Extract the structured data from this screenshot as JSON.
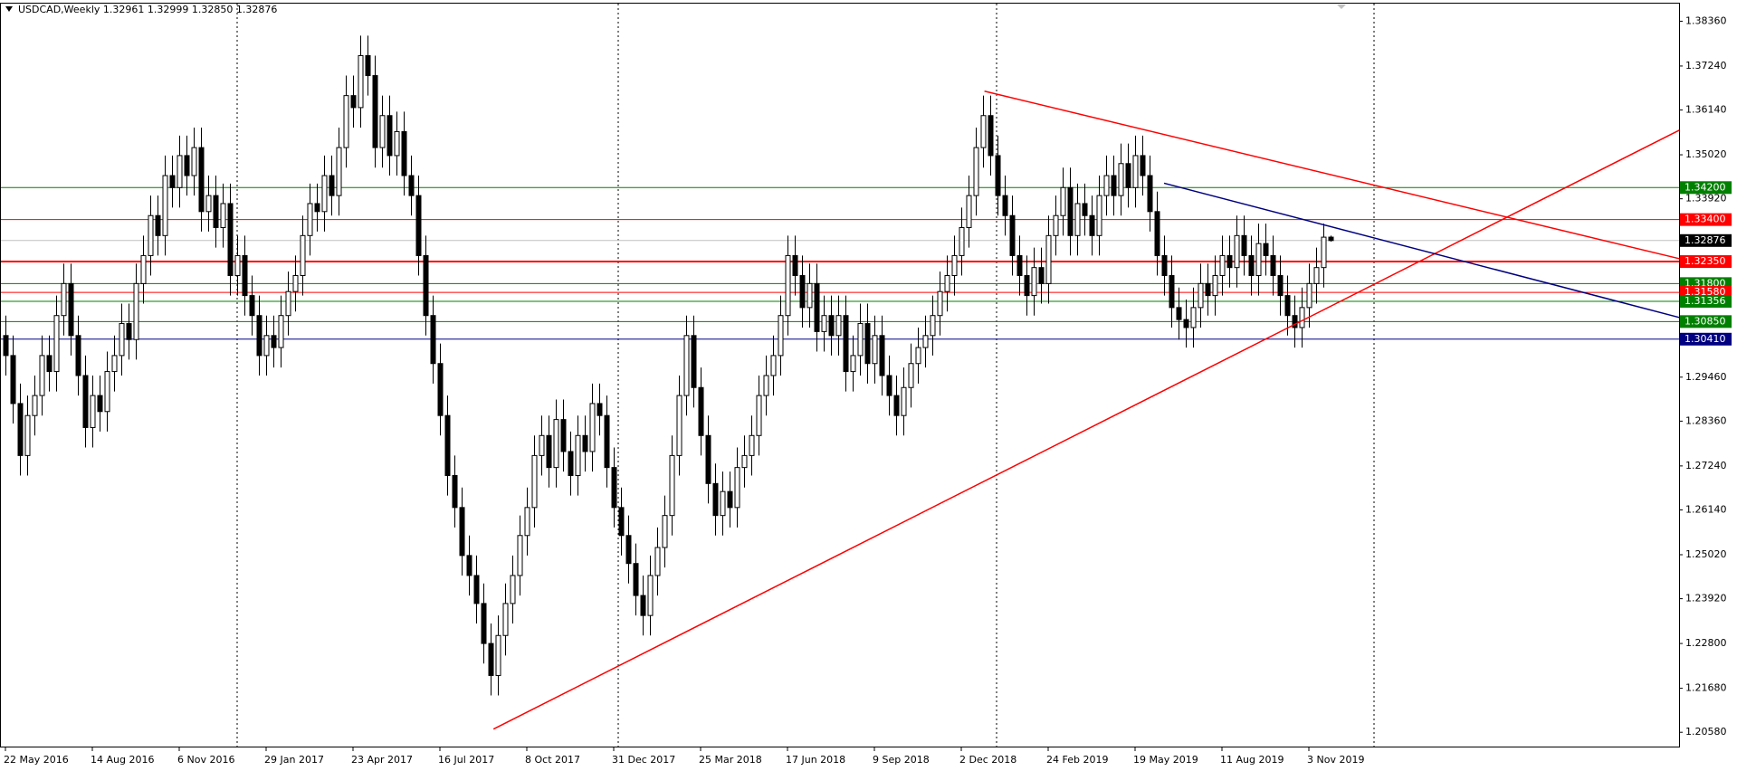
{
  "chart_data": {
    "type": "candlestick",
    "title": "USDCAD,Weekly  1.32961 1.32999 1.32850 1.32876",
    "ylim": [
      1.202,
      1.388
    ],
    "yticks": [
      {
        "value": 1.3836,
        "label": "1.38360"
      },
      {
        "value": 1.3724,
        "label": "1.37240"
      },
      {
        "value": 1.3614,
        "label": "1.36140"
      },
      {
        "value": 1.3502,
        "label": "1.35020"
      },
      {
        "value": 1.3392,
        "label": "1.33920"
      },
      {
        "value": 1.2946,
        "label": "1.29460"
      },
      {
        "value": 1.2836,
        "label": "1.28360"
      },
      {
        "value": 1.2724,
        "label": "1.27240"
      },
      {
        "value": 1.2614,
        "label": "1.26140"
      },
      {
        "value": 1.2502,
        "label": "1.25020"
      },
      {
        "value": 1.2392,
        "label": "1.23920"
      },
      {
        "value": 1.228,
        "label": "1.22800"
      },
      {
        "value": 1.2168,
        "label": "1.21680"
      },
      {
        "value": 1.2058,
        "label": "1.20580"
      }
    ],
    "x_labels": [
      "22 May 2016",
      "14 Aug 2016",
      "6 Nov 2016",
      "29 Jan 2017",
      "23 Apr 2017",
      "16 Jul 2017",
      "8 Oct 2017",
      "31 Dec 2017",
      "25 Mar 2018",
      "17 Jun 2018",
      "9 Sep 2018",
      "2 Dec 2018",
      "24 Feb 2019",
      "19 May 2019",
      "11 Aug 2019",
      "3 Nov 2019"
    ],
    "levels": [
      {
        "value": 1.342,
        "label": "1.34200",
        "color": "#008000"
      },
      {
        "value": 1.334,
        "label": "1.33400",
        "color": "#ff0000"
      },
      {
        "value": 1.32876,
        "label": "1.32876",
        "color": "#000000",
        "line_color": "#c0c0c0"
      },
      {
        "value": 1.3235,
        "label": "1.32350",
        "color": "#ff0000"
      },
      {
        "value": 1.318,
        "label": "1.31800",
        "color": "#008000"
      },
      {
        "value": 1.3158,
        "label": "1.31580",
        "color": "#ff0000"
      },
      {
        "value": 1.31356,
        "label": "1.31356",
        "color": "#008000"
      },
      {
        "value": 1.3085,
        "label": "1.30850",
        "color": "#008000"
      },
      {
        "value": 1.3041,
        "label": "1.30410",
        "color": "#000080"
      }
    ],
    "trendlines": [
      {
        "color": "#ff0000",
        "x": [
          67.4,
          231.2
        ],
        "y": [
          1.2066,
          1.3564
        ]
      },
      {
        "color": "#ff0000",
        "x": [
          135.2,
          231.2
        ],
        "y": [
          1.3661,
          1.3242
        ]
      },
      {
        "color": "#000080",
        "x": [
          160,
          231.2
        ],
        "y": [
          1.3431,
          1.3095
        ]
      }
    ],
    "candles": [
      [
        1.305,
        1.31,
        1.295,
        1.3
      ],
      [
        1.3,
        1.305,
        1.283,
        1.288
      ],
      [
        1.288,
        1.293,
        1.27,
        1.275
      ],
      [
        1.275,
        1.29,
        1.27,
        1.285
      ],
      [
        1.285,
        1.295,
        1.28,
        1.29
      ],
      [
        1.29,
        1.305,
        1.285,
        1.3
      ],
      [
        1.3,
        1.305,
        1.291,
        1.296
      ],
      [
        1.296,
        1.315,
        1.291,
        1.31
      ],
      [
        1.31,
        1.323,
        1.305,
        1.318
      ],
      [
        1.318,
        1.323,
        1.3,
        1.305
      ],
      [
        1.305,
        1.31,
        1.29,
        1.295
      ],
      [
        1.295,
        1.3,
        1.277,
        1.282
      ],
      [
        1.282,
        1.295,
        1.277,
        1.29
      ],
      [
        1.29,
        1.295,
        1.281,
        1.286
      ],
      [
        1.286,
        1.301,
        1.281,
        1.296
      ],
      [
        1.296,
        1.305,
        1.291,
        1.3
      ],
      [
        1.3,
        1.313,
        1.295,
        1.308
      ],
      [
        1.308,
        1.313,
        1.299,
        1.304
      ],
      [
        1.304,
        1.323,
        1.299,
        1.318
      ],
      [
        1.318,
        1.33,
        1.313,
        1.325
      ],
      [
        1.325,
        1.34,
        1.32,
        1.335
      ],
      [
        1.335,
        1.34,
        1.325,
        1.33
      ],
      [
        1.33,
        1.35,
        1.325,
        1.345
      ],
      [
        1.345,
        1.35,
        1.337,
        1.342
      ],
      [
        1.342,
        1.355,
        1.337,
        1.35
      ],
      [
        1.35,
        1.355,
        1.34,
        1.345
      ],
      [
        1.345,
        1.357,
        1.34,
        1.352
      ],
      [
        1.352,
        1.357,
        1.331,
        1.336
      ],
      [
        1.336,
        1.345,
        1.331,
        1.34
      ],
      [
        1.34,
        1.345,
        1.327,
        1.332
      ],
      [
        1.332,
        1.343,
        1.327,
        1.338
      ],
      [
        1.338,
        1.343,
        1.315,
        1.32
      ],
      [
        1.32,
        1.33,
        1.315,
        1.325
      ],
      [
        1.325,
        1.33,
        1.31,
        1.315
      ],
      [
        1.315,
        1.32,
        1.305,
        1.31
      ],
      [
        1.31,
        1.315,
        1.295,
        1.3
      ],
      [
        1.3,
        1.31,
        1.295,
        1.305
      ],
      [
        1.305,
        1.31,
        1.297,
        1.302
      ],
      [
        1.302,
        1.315,
        1.297,
        1.31
      ],
      [
        1.31,
        1.321,
        1.305,
        1.316
      ],
      [
        1.316,
        1.325,
        1.311,
        1.32
      ],
      [
        1.32,
        1.335,
        1.315,
        1.33
      ],
      [
        1.33,
        1.343,
        1.325,
        1.338
      ],
      [
        1.338,
        1.343,
        1.331,
        1.336
      ],
      [
        1.336,
        1.35,
        1.331,
        1.345
      ],
      [
        1.345,
        1.35,
        1.335,
        1.34
      ],
      [
        1.34,
        1.357,
        1.335,
        1.352
      ],
      [
        1.352,
        1.37,
        1.347,
        1.365
      ],
      [
        1.365,
        1.37,
        1.357,
        1.362
      ],
      [
        1.362,
        1.38,
        1.357,
        1.375
      ],
      [
        1.375,
        1.38,
        1.365,
        1.37
      ],
      [
        1.37,
        1.375,
        1.347,
        1.352
      ],
      [
        1.352,
        1.365,
        1.347,
        1.36
      ],
      [
        1.36,
        1.365,
        1.345,
        1.35
      ],
      [
        1.35,
        1.361,
        1.345,
        1.356
      ],
      [
        1.356,
        1.361,
        1.34,
        1.345
      ],
      [
        1.345,
        1.35,
        1.335,
        1.34
      ],
      [
        1.34,
        1.345,
        1.32,
        1.325
      ],
      [
        1.325,
        1.33,
        1.305,
        1.31
      ],
      [
        1.31,
        1.315,
        1.293,
        1.298
      ],
      [
        1.298,
        1.303,
        1.28,
        1.285
      ],
      [
        1.285,
        1.29,
        1.265,
        1.27
      ],
      [
        1.27,
        1.275,
        1.257,
        1.262
      ],
      [
        1.262,
        1.267,
        1.245,
        1.25
      ],
      [
        1.25,
        1.255,
        1.24,
        1.245
      ],
      [
        1.245,
        1.25,
        1.233,
        1.238
      ],
      [
        1.238,
        1.243,
        1.223,
        1.228
      ],
      [
        1.228,
        1.233,
        1.215,
        1.22
      ],
      [
        1.22,
        1.235,
        1.215,
        1.23
      ],
      [
        1.23,
        1.243,
        1.225,
        1.238
      ],
      [
        1.238,
        1.25,
        1.233,
        1.245
      ],
      [
        1.245,
        1.26,
        1.24,
        1.255
      ],
      [
        1.255,
        1.267,
        1.25,
        1.262
      ],
      [
        1.262,
        1.28,
        1.257,
        1.275
      ],
      [
        1.275,
        1.285,
        1.27,
        1.28
      ],
      [
        1.28,
        1.285,
        1.267,
        1.272
      ],
      [
        1.272,
        1.289,
        1.267,
        1.284
      ],
      [
        1.284,
        1.289,
        1.271,
        1.276
      ],
      [
        1.276,
        1.281,
        1.265,
        1.27
      ],
      [
        1.27,
        1.285,
        1.265,
        1.28
      ],
      [
        1.28,
        1.285,
        1.271,
        1.276
      ],
      [
        1.276,
        1.293,
        1.271,
        1.288
      ],
      [
        1.288,
        1.293,
        1.28,
        1.285
      ],
      [
        1.285,
        1.29,
        1.267,
        1.272
      ],
      [
        1.272,
        1.277,
        1.257,
        1.262
      ],
      [
        1.262,
        1.267,
        1.25,
        1.255
      ],
      [
        1.255,
        1.26,
        1.243,
        1.248
      ],
      [
        1.248,
        1.253,
        1.235,
        1.24
      ],
      [
        1.24,
        1.245,
        1.23,
        1.235
      ],
      [
        1.235,
        1.25,
        1.23,
        1.245
      ],
      [
        1.245,
        1.257,
        1.24,
        1.252
      ],
      [
        1.252,
        1.265,
        1.247,
        1.26
      ],
      [
        1.26,
        1.28,
        1.255,
        1.275
      ],
      [
        1.275,
        1.295,
        1.27,
        1.29
      ],
      [
        1.29,
        1.31,
        1.285,
        1.305
      ],
      [
        1.305,
        1.31,
        1.287,
        1.292
      ],
      [
        1.292,
        1.297,
        1.275,
        1.28
      ],
      [
        1.28,
        1.285,
        1.263,
        1.268
      ],
      [
        1.268,
        1.273,
        1.255,
        1.26
      ],
      [
        1.26,
        1.271,
        1.255,
        1.266
      ],
      [
        1.266,
        1.271,
        1.257,
        1.262
      ],
      [
        1.262,
        1.277,
        1.257,
        1.272
      ],
      [
        1.272,
        1.28,
        1.267,
        1.275
      ],
      [
        1.275,
        1.285,
        1.27,
        1.28
      ],
      [
        1.28,
        1.295,
        1.275,
        1.29
      ],
      [
        1.29,
        1.3,
        1.285,
        1.295
      ],
      [
        1.295,
        1.305,
        1.29,
        1.3
      ],
      [
        1.3,
        1.315,
        1.295,
        1.31
      ],
      [
        1.31,
        1.33,
        1.305,
        1.325
      ],
      [
        1.325,
        1.33,
        1.315,
        1.32
      ],
      [
        1.32,
        1.325,
        1.307,
        1.312
      ],
      [
        1.312,
        1.323,
        1.307,
        1.318
      ],
      [
        1.318,
        1.323,
        1.301,
        1.306
      ],
      [
        1.306,
        1.315,
        1.301,
        1.31
      ],
      [
        1.31,
        1.315,
        1.3,
        1.305
      ],
      [
        1.305,
        1.315,
        1.3,
        1.31
      ],
      [
        1.31,
        1.315,
        1.291,
        1.296
      ],
      [
        1.296,
        1.305,
        1.291,
        1.3
      ],
      [
        1.3,
        1.313,
        1.295,
        1.308
      ],
      [
        1.308,
        1.313,
        1.293,
        1.298
      ],
      [
        1.298,
        1.31,
        1.293,
        1.305
      ],
      [
        1.305,
        1.31,
        1.29,
        1.295
      ],
      [
        1.295,
        1.3,
        1.285,
        1.29
      ],
      [
        1.29,
        1.295,
        1.28,
        1.285
      ],
      [
        1.285,
        1.297,
        1.28,
        1.292
      ],
      [
        1.292,
        1.303,
        1.287,
        1.298
      ],
      [
        1.298,
        1.307,
        1.293,
        1.302
      ],
      [
        1.302,
        1.31,
        1.297,
        1.305
      ],
      [
        1.305,
        1.315,
        1.3,
        1.31
      ],
      [
        1.31,
        1.321,
        1.305,
        1.316
      ],
      [
        1.316,
        1.325,
        1.311,
        1.32
      ],
      [
        1.32,
        1.33,
        1.315,
        1.325
      ],
      [
        1.325,
        1.337,
        1.32,
        1.332
      ],
      [
        1.332,
        1.345,
        1.327,
        1.34
      ],
      [
        1.34,
        1.357,
        1.335,
        1.352
      ],
      [
        1.352,
        1.365,
        1.347,
        1.36
      ],
      [
        1.36,
        1.365,
        1.345,
        1.35
      ],
      [
        1.35,
        1.355,
        1.335,
        1.34
      ],
      [
        1.34,
        1.345,
        1.33,
        1.335
      ],
      [
        1.335,
        1.34,
        1.32,
        1.325
      ],
      [
        1.325,
        1.33,
        1.315,
        1.32
      ],
      [
        1.32,
        1.325,
        1.31,
        1.315
      ],
      [
        1.315,
        1.327,
        1.31,
        1.322
      ],
      [
        1.322,
        1.327,
        1.313,
        1.318
      ],
      [
        1.318,
        1.335,
        1.313,
        1.33
      ],
      [
        1.33,
        1.34,
        1.325,
        1.335
      ],
      [
        1.335,
        1.347,
        1.33,
        1.342
      ],
      [
        1.342,
        1.347,
        1.325,
        1.33
      ],
      [
        1.33,
        1.343,
        1.325,
        1.338
      ],
      [
        1.338,
        1.343,
        1.33,
        1.335
      ],
      [
        1.335,
        1.34,
        1.325,
        1.33
      ],
      [
        1.33,
        1.345,
        1.325,
        1.34
      ],
      [
        1.34,
        1.35,
        1.335,
        1.345
      ],
      [
        1.345,
        1.35,
        1.335,
        1.34
      ],
      [
        1.34,
        1.353,
        1.335,
        1.348
      ],
      [
        1.348,
        1.353,
        1.337,
        1.342
      ],
      [
        1.342,
        1.355,
        1.337,
        1.35
      ],
      [
        1.35,
        1.355,
        1.34,
        1.345
      ],
      [
        1.345,
        1.35,
        1.331,
        1.336
      ],
      [
        1.336,
        1.341,
        1.32,
        1.325
      ],
      [
        1.325,
        1.33,
        1.315,
        1.32
      ],
      [
        1.32,
        1.325,
        1.307,
        1.312
      ],
      [
        1.312,
        1.317,
        1.304,
        1.309
      ],
      [
        1.309,
        1.314,
        1.302,
        1.307
      ],
      [
        1.307,
        1.317,
        1.302,
        1.312
      ],
      [
        1.312,
        1.323,
        1.307,
        1.318
      ],
      [
        1.318,
        1.323,
        1.31,
        1.315
      ],
      [
        1.315,
        1.325,
        1.31,
        1.32
      ],
      [
        1.32,
        1.33,
        1.315,
        1.325
      ],
      [
        1.325,
        1.33,
        1.317,
        1.322
      ],
      [
        1.322,
        1.335,
        1.317,
        1.33
      ],
      [
        1.33,
        1.335,
        1.32,
        1.325
      ],
      [
        1.325,
        1.33,
        1.315,
        1.32
      ],
      [
        1.32,
        1.333,
        1.315,
        1.328
      ],
      [
        1.328,
        1.333,
        1.32,
        1.325
      ],
      [
        1.325,
        1.33,
        1.315,
        1.32
      ],
      [
        1.32,
        1.325,
        1.31,
        1.315
      ],
      [
        1.315,
        1.32,
        1.305,
        1.31
      ],
      [
        1.31,
        1.315,
        1.302,
        1.307
      ],
      [
        1.307,
        1.317,
        1.302,
        1.312
      ],
      [
        1.312,
        1.323,
        1.307,
        1.318
      ],
      [
        1.318,
        1.327,
        1.313,
        1.322
      ],
      [
        1.322,
        1.333,
        1.317,
        1.3296
      ],
      [
        1.32961,
        1.32999,
        1.3285,
        1.32876
      ]
    ]
  }
}
